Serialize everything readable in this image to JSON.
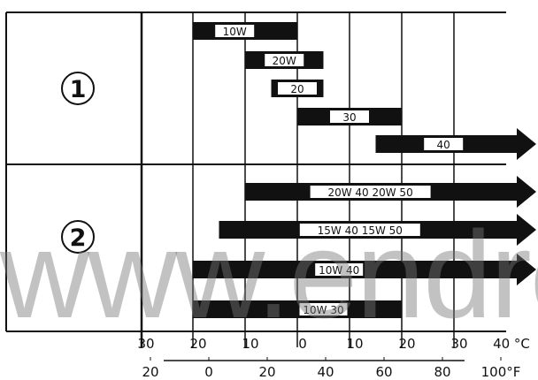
{
  "row_labels": [
    "1",
    "2"
  ],
  "bars": [
    {
      "label": "10W",
      "row": 1,
      "from": -20,
      "to": 0,
      "arrow": false
    },
    {
      "label": "20W",
      "row": 1,
      "from": -10,
      "to": 5,
      "arrow": false
    },
    {
      "label": "20",
      "row": 1,
      "from": -5,
      "to": 5,
      "arrow": false
    },
    {
      "label": "30",
      "row": 1,
      "from": 0,
      "to": 20,
      "arrow": false
    },
    {
      "label": "40",
      "row": 1,
      "from": 15,
      "to": 40,
      "arrow": true
    },
    {
      "label": "20W 40 20W 50",
      "row": 2,
      "from": -10,
      "to": 40,
      "arrow": true
    },
    {
      "label": "15W 40 15W 50",
      "row": 2,
      "from": -15,
      "to": 40,
      "arrow": true
    },
    {
      "label": "10W 40",
      "row": 2,
      "from": -20,
      "to": 40,
      "arrow": true
    },
    {
      "label": "10W 30",
      "row": 2,
      "from": -20,
      "to": 20,
      "arrow": false
    }
  ],
  "celsius_ticks": [
    "30",
    "20",
    "10",
    "0",
    "10",
    "20",
    "30",
    "40 °C"
  ],
  "fahrenheit_ticks": [
    "20",
    "0",
    "20",
    "40",
    "60",
    "80",
    "100°F"
  ],
  "watermark": "www.endre",
  "colors": {
    "bar": "#111111",
    "label_bg": "#ffffff",
    "line": "#111111",
    "background": "#ffffff"
  }
}
